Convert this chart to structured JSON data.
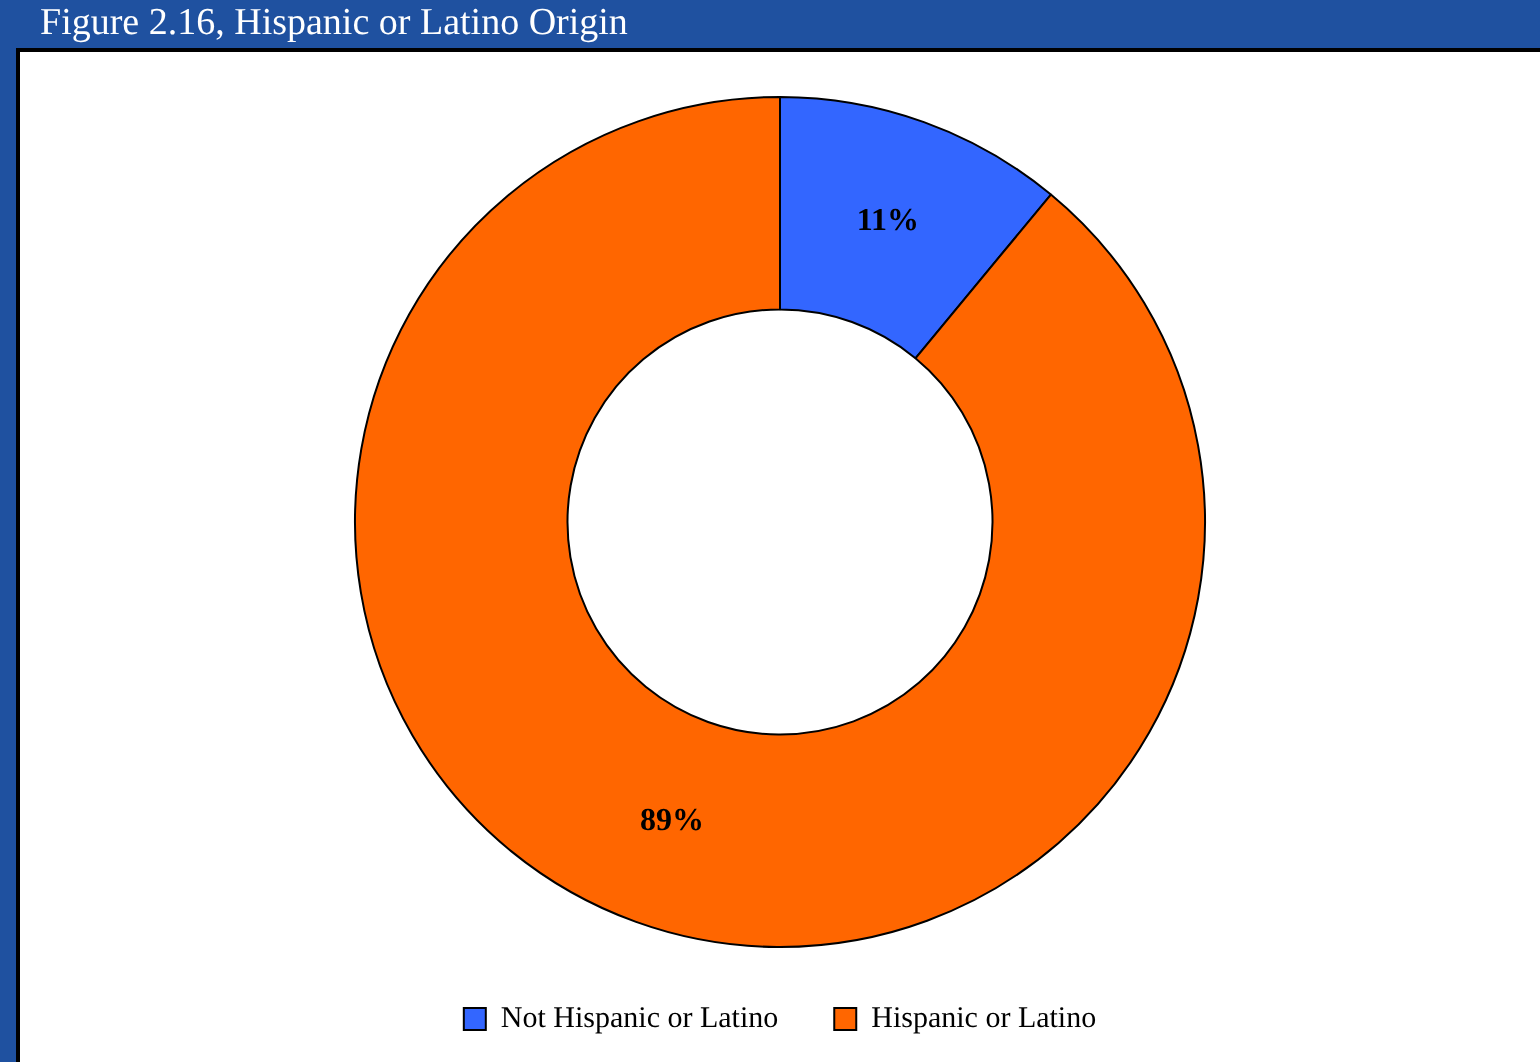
{
  "chart_data": {
    "type": "donut",
    "title": "Figure 2.16, Hispanic or Latino Origin",
    "categories": [
      "Not Hispanic or Latino",
      "Hispanic or Latino"
    ],
    "values": [
      11,
      89
    ],
    "value_labels": [
      "11%",
      "89%"
    ],
    "colors": [
      "#3366ff",
      "#ff6600"
    ],
    "legend": "bottom"
  }
}
